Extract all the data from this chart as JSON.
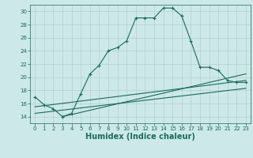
{
  "xlabel": "Humidex (Indice chaleur)",
  "ylabel": "",
  "bg_color": "#cce8e8",
  "grid_color": "#b0c8c8",
  "line_color": "#1a6b5a",
  "xlim": [
    -0.5,
    23.5
  ],
  "ylim": [
    13,
    31
  ],
  "xticks": [
    0,
    1,
    2,
    3,
    4,
    5,
    6,
    7,
    8,
    9,
    10,
    11,
    12,
    13,
    14,
    15,
    16,
    17,
    18,
    19,
    20,
    21,
    22,
    23
  ],
  "yticks": [
    14,
    16,
    18,
    20,
    22,
    24,
    26,
    28,
    30
  ],
  "main_x": [
    0,
    1,
    2,
    3,
    4,
    5,
    6,
    7,
    8,
    9,
    10,
    11,
    12,
    13,
    14,
    15,
    16,
    17,
    18,
    19,
    20,
    21,
    22,
    23
  ],
  "main_y": [
    17,
    15.8,
    15.2,
    14,
    14.5,
    17.5,
    20.5,
    21.8,
    24,
    24.5,
    25.5,
    29,
    29,
    29,
    30.5,
    30.5,
    29.3,
    25.5,
    21.5,
    21.5,
    21,
    19.5,
    19.2,
    19.2
  ],
  "line2_x": [
    0,
    23
  ],
  "line2_y": [
    15.5,
    19.5
  ],
  "line3_x": [
    0,
    23
  ],
  "line3_y": [
    14.5,
    18.3
  ],
  "line4_x": [
    3,
    23
  ],
  "line4_y": [
    14.0,
    20.5
  ],
  "xlabel_fontsize": 7,
  "tick_fontsize": 5,
  "linewidth": 0.8,
  "marker_size": 3
}
